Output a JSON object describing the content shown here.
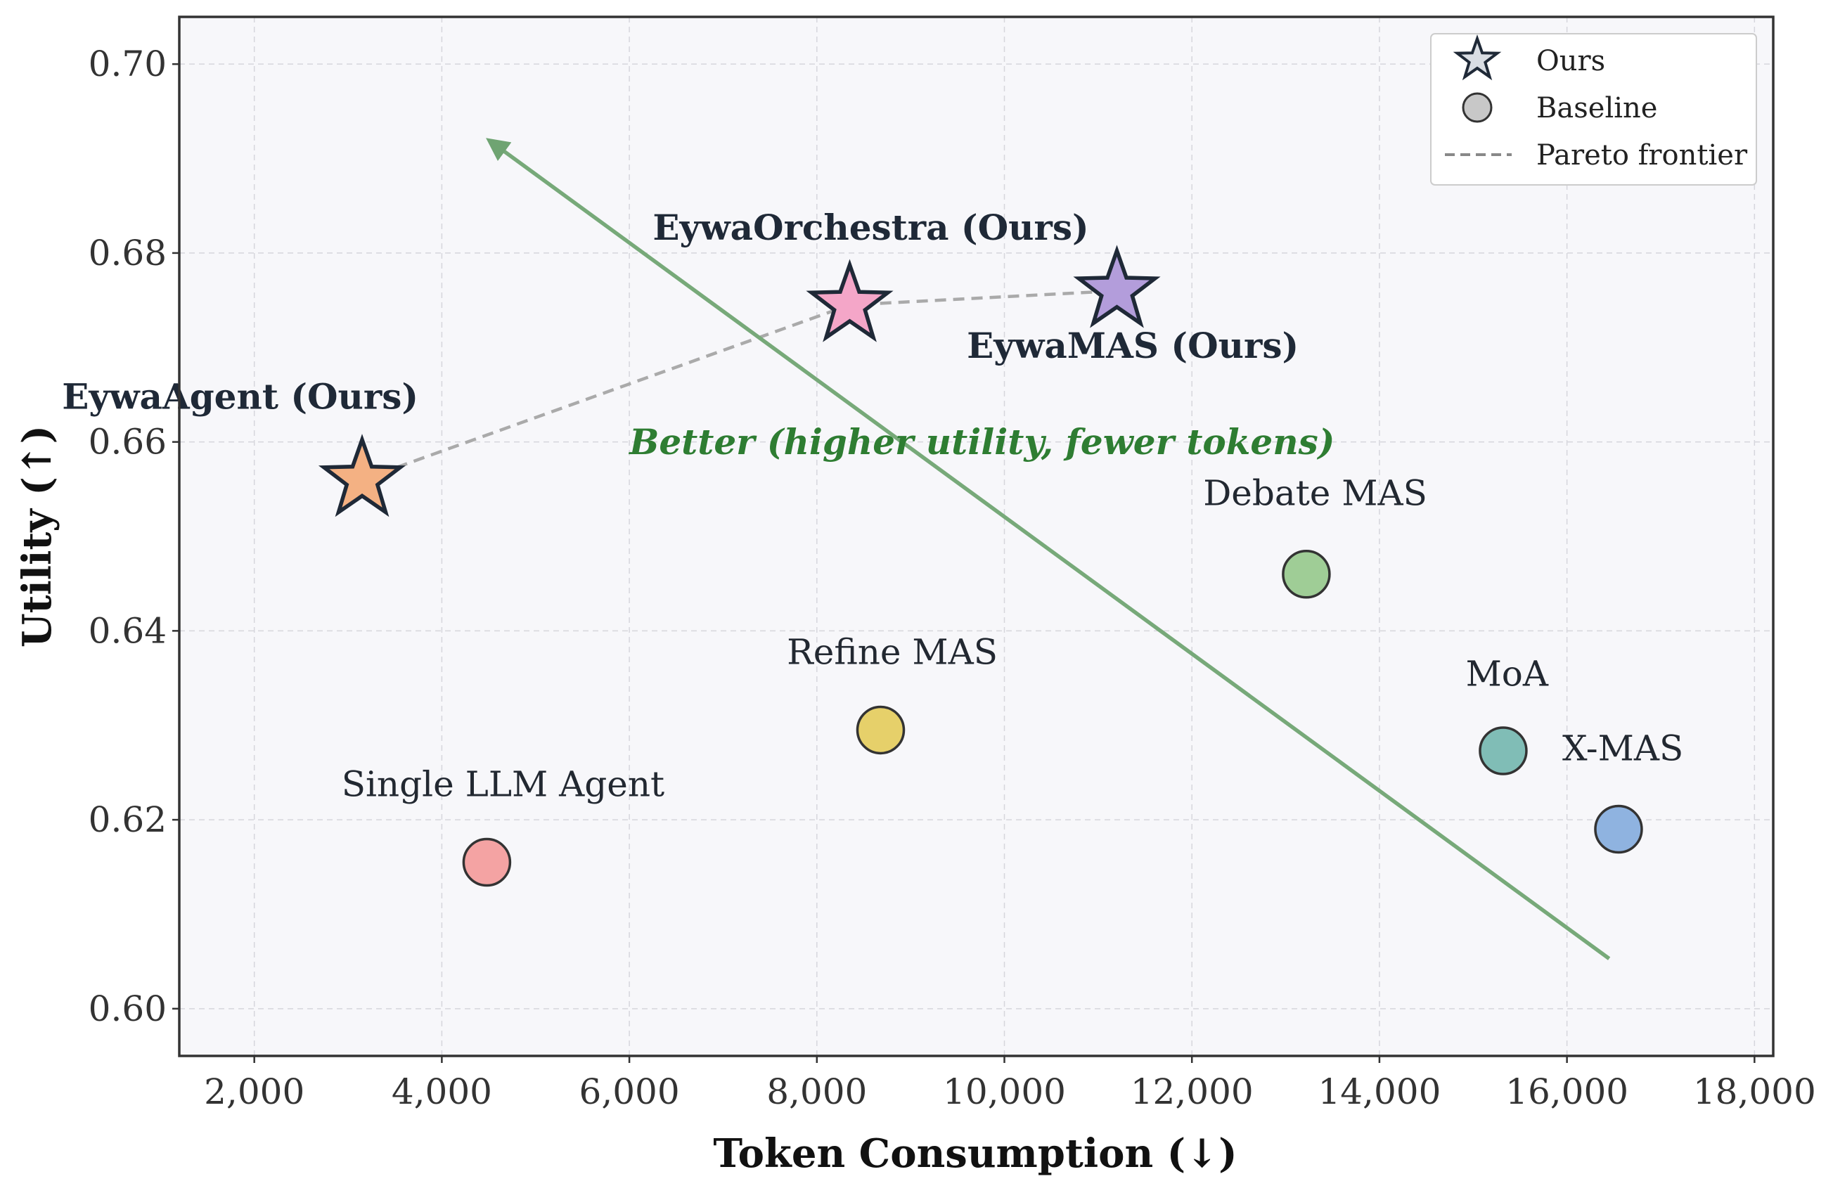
{
  "chart_data": {
    "type": "scatter",
    "xlabel": "Token Consumption (↓)",
    "ylabel": "Utility (↑)",
    "xlim": [
      1200,
      18200
    ],
    "ylim": [
      0.595,
      0.705
    ],
    "xticks": [
      2000,
      4000,
      6000,
      8000,
      10000,
      12000,
      14000,
      16000,
      18000
    ],
    "xtick_labels": [
      "2,000",
      "4,000",
      "6,000",
      "8,000",
      "10,000",
      "12,000",
      "14,000",
      "16,000",
      "18,000"
    ],
    "yticks": [
      0.6,
      0.62,
      0.64,
      0.66,
      0.68,
      0.7
    ],
    "ytick_labels": [
      "0.60",
      "0.62",
      "0.64",
      "0.66",
      "0.68",
      "0.70"
    ],
    "grid": true,
    "legend_position": "top-right",
    "legend": [
      {
        "label": "Ours",
        "marker": "star"
      },
      {
        "label": "Baseline",
        "marker": "circle"
      },
      {
        "label": "Pareto frontier",
        "marker": "dashed-line"
      }
    ],
    "points": [
      {
        "label": "EywaAgent (Ours)",
        "x": 3150,
        "y": 0.656,
        "group": "ours",
        "color": "#f4b183",
        "label_dx": -3200,
        "label_dy": 0.0075
      },
      {
        "label": "EywaOrchestra (Ours)",
        "x": 8350,
        "y": 0.6745,
        "group": "ours",
        "color": "#f4a6c8",
        "label_dx": -2100,
        "label_dy": 0.0069
      },
      {
        "label": "EywaMAS (Ours)",
        "x": 11200,
        "y": 0.676,
        "group": "ours",
        "color": "#b39ddb",
        "label_dx": -1600,
        "label_dy": -0.0071
      },
      {
        "label": "Single LLM Agent",
        "x": 4480,
        "y": 0.6155,
        "group": "baseline",
        "color": "#f4a3a3",
        "label_dx": -1550,
        "label_dy": 0.007
      },
      {
        "label": "Refine MAS",
        "x": 8680,
        "y": 0.6295,
        "group": "baseline",
        "color": "#e6d06a",
        "label_dx": -1000,
        "label_dy": 0.007
      },
      {
        "label": "Debate MAS",
        "x": 13220,
        "y": 0.646,
        "group": "baseline",
        "color": "#9fcd96",
        "label_dx": -1100,
        "label_dy": 0.0073
      },
      {
        "label": "MoA",
        "x": 15320,
        "y": 0.6273,
        "group": "baseline",
        "color": "#80bdb6",
        "label_dx": -400,
        "label_dy": 0.0069
      },
      {
        "label": "X-MAS",
        "x": 16550,
        "y": 0.619,
        "group": "baseline",
        "color": "#8fb3e0",
        "label_dx": -600,
        "label_dy": 0.0073
      }
    ],
    "pareto_frontier": [
      [
        3150,
        0.656
      ],
      [
        8350,
        0.6745
      ],
      [
        11200,
        0.676
      ]
    ],
    "arrow": {
      "from": [
        16450,
        0.6053
      ],
      "to": [
        4550,
        0.6916
      ],
      "color": "#77a979"
    },
    "annotation": {
      "text": "Better  (higher utility, fewer tokens)",
      "x": 6000,
      "y": 0.6587,
      "color": "#2e7d32"
    }
  }
}
